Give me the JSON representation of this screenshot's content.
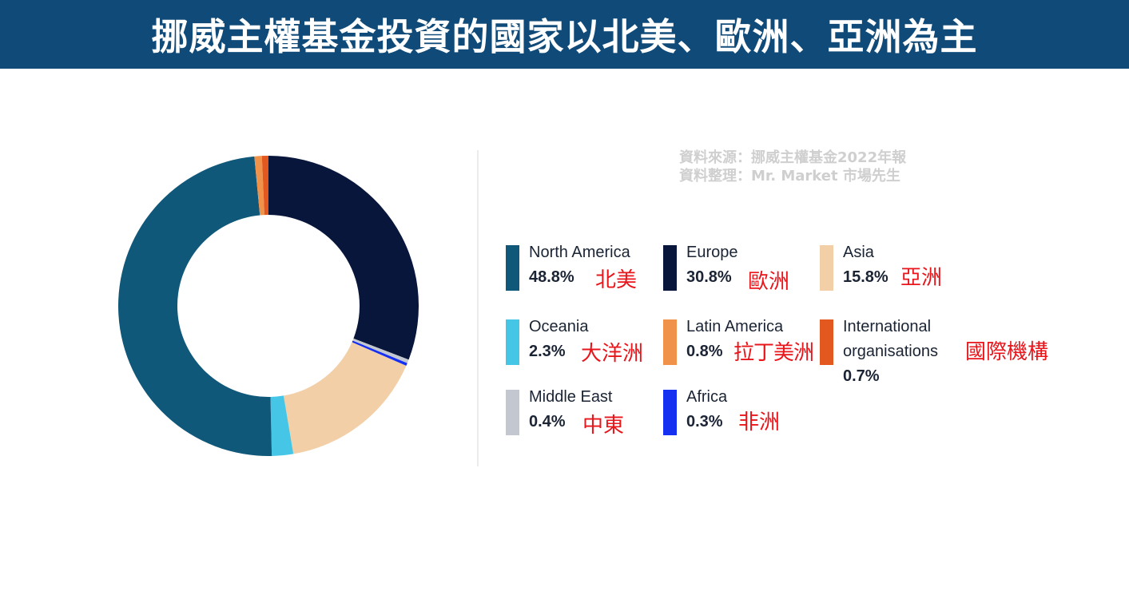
{
  "header": {
    "title": "挪威主權基金投資的國家以北美、歐洲、亞洲為主"
  },
  "source": {
    "line1": "資料來源：挪威主權基金2022年報",
    "line2": "資料整理：Mr. Market 市場先生"
  },
  "chart_data": {
    "type": "pie",
    "variant": "donut",
    "slices": [
      {
        "name": "Europe",
        "value": 30.8,
        "value_label": "30.8%",
        "zh": "歐洲",
        "color": "#07163a"
      },
      {
        "name": "Middle East",
        "value": 0.4,
        "value_label": "0.4%",
        "zh": "中東",
        "color": "#c3c7cf"
      },
      {
        "name": "Africa",
        "value": 0.3,
        "value_label": "0.3%",
        "zh": "非洲",
        "color": "#1530f0"
      },
      {
        "name": "Asia",
        "value": 15.8,
        "value_label": "15.8%",
        "zh": "亞洲",
        "color": "#f2cfa7"
      },
      {
        "name": "Oceania",
        "value": 2.3,
        "value_label": "2.3%",
        "zh": "大洋洲",
        "color": "#45c6e6"
      },
      {
        "name": "North America",
        "value": 48.8,
        "value_label": "48.8%",
        "zh": "北美",
        "color": "#10587a"
      },
      {
        "name": "Latin America",
        "value": 0.8,
        "value_label": "0.8%",
        "zh": "拉丁美洲",
        "color": "#f0924a"
      },
      {
        "name": "International organisations",
        "value": 0.7,
        "value_label": "0.7%",
        "zh": "國際機構",
        "color": "#e2581f"
      }
    ],
    "legend": [
      {
        "name": "North America",
        "value": "48.8%",
        "zh": "北美",
        "color": "#10587a"
      },
      {
        "name": "Europe",
        "value": "30.8%",
        "zh": "歐洲",
        "color": "#07163a"
      },
      {
        "name": "Asia",
        "value": "15.8%",
        "zh": "亞洲",
        "color": "#f2cfa7"
      },
      {
        "name": "Oceania",
        "value": "2.3%",
        "zh": "大洋洲",
        "color": "#45c6e6"
      },
      {
        "name": "Latin America",
        "value": "0.8%",
        "zh": "拉丁美洲",
        "color": "#f0924a"
      },
      {
        "name_line1": "International",
        "name_line2": "organisations",
        "value": "0.7%",
        "zh": "國際機構",
        "color": "#e2581f"
      },
      {
        "name": "Middle East",
        "value": "0.4%",
        "zh": "中東",
        "color": "#c3c7cf"
      },
      {
        "name": "Africa",
        "value": "0.3%",
        "zh": "非洲",
        "color": "#1530f0"
      }
    ],
    "legend_placement": "right"
  }
}
